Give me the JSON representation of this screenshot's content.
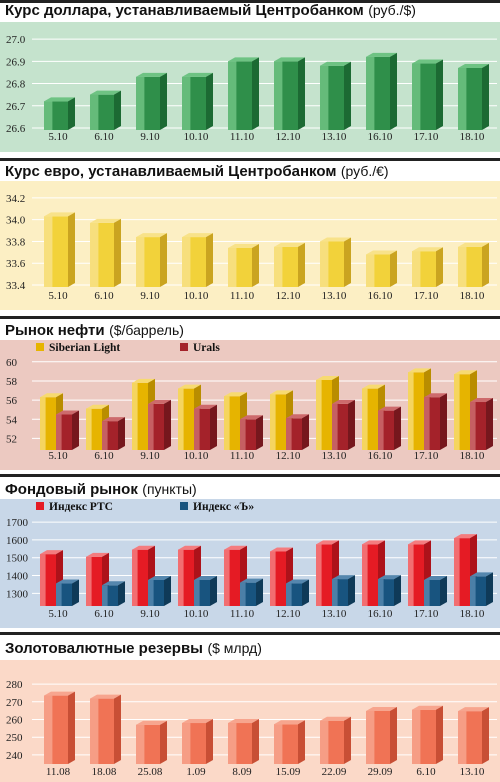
{
  "chart_data": [
    {
      "type": "bar",
      "title": "Курс доллара, устанавливаемый Центробанком",
      "unit": "(руб./$)",
      "categories": [
        "5.10",
        "6.10",
        "9.10",
        "10.10",
        "11.10",
        "12.10",
        "13.10",
        "16.10",
        "17.10",
        "18.10"
      ],
      "y_ticks": [
        "26.6",
        "26.7",
        "26.8",
        "26.9",
        "27.0"
      ],
      "ylim": [
        26.6,
        27.05
      ],
      "colors": {
        "bg": "#c5e3cd",
        "bar": "#2f8f4a",
        "bar_light": "#6ec383",
        "bar_dark": "#1c6a33"
      },
      "series": [
        {
          "values": [
            26.72,
            26.75,
            26.83,
            26.83,
            26.9,
            26.9,
            26.88,
            26.92,
            26.89,
            26.87
          ]
        }
      ]
    },
    {
      "type": "bar",
      "title": "Курс евро, устанавливаемый Центробанком",
      "unit": "(руб./€)",
      "categories": [
        "5.10",
        "6.10",
        "9.10",
        "10.10",
        "11.10",
        "12.10",
        "13.10",
        "16.10",
        "17.10",
        "18.10"
      ],
      "y_ticks": [
        "33.4",
        "33.6",
        "33.8",
        "34.0",
        "34.2"
      ],
      "ylim": [
        33.4,
        34.3
      ],
      "colors": {
        "bg": "#fcefc4",
        "bar": "#f2d23a",
        "bar_light": "#f8e289",
        "bar_dark": "#caa420"
      },
      "series": [
        {
          "values": [
            34.03,
            33.97,
            33.84,
            33.84,
            33.74,
            33.75,
            33.8,
            33.68,
            33.71,
            33.75
          ]
        }
      ]
    },
    {
      "type": "bar",
      "title": "Рынок нефти",
      "unit": "($/баррель)",
      "categories": [
        "5.10",
        "6.10",
        "9.10",
        "10.10",
        "11.10",
        "12.10",
        "13.10",
        "16.10",
        "17.10",
        "18.10"
      ],
      "y_ticks": [
        "52",
        "54",
        "56",
        "58",
        "60"
      ],
      "ylim": [
        51,
        60.5
      ],
      "colors": {
        "bg": "#ecc9c1"
      },
      "series": [
        {
          "name": "Siberian Light",
          "color": "#e6b400",
          "light": "#f7da70",
          "dark": "#b98d00",
          "values": [
            56.3,
            55.1,
            57.8,
            57.2,
            56.4,
            56.6,
            58.1,
            57.2,
            58.9,
            58.7
          ]
        },
        {
          "name": "Urals",
          "color": "#a4222a",
          "light": "#cd6a6c",
          "dark": "#76171d",
          "values": [
            54.5,
            53.8,
            55.6,
            55.1,
            54.0,
            54.1,
            55.6,
            54.9,
            56.3,
            55.8
          ]
        }
      ]
    },
    {
      "type": "bar",
      "title": "Фондовый рынок",
      "unit": "(пункты)",
      "categories": [
        "5.10",
        "6.10",
        "9.10",
        "10.10",
        "11.10",
        "12.10",
        "13.10",
        "16.10",
        "17.10",
        "18.10"
      ],
      "y_ticks": [
        "1300",
        "1400",
        "1500",
        "1600",
        "1700"
      ],
      "ylim": [
        1240,
        1740
      ],
      "colors": {
        "bg": "#c8d7e8"
      },
      "series": [
        {
          "name": "Индекс РТС",
          "color": "#e51b24",
          "light": "#f47c7f",
          "dark": "#ad121a",
          "values": [
            1520,
            1505,
            1545,
            1545,
            1545,
            1535,
            1575,
            1575,
            1575,
            1610
          ]
        },
        {
          "name": "Индекс «Ъ»",
          "color": "#18547f",
          "light": "#5587ae",
          "dark": "#0f3a58",
          "values": [
            1355,
            1345,
            1375,
            1375,
            1360,
            1355,
            1380,
            1380,
            1375,
            1395
          ]
        }
      ]
    },
    {
      "type": "bar",
      "title": "Золотовалютные резервы",
      "unit": "($ млрд)",
      "categories": [
        "11.08",
        "18.08",
        "25.08",
        "1.09",
        "8.09",
        "15.09",
        "22.09",
        "29.09",
        "6.10",
        "13.10"
      ],
      "y_ticks": [
        "240",
        "250",
        "260",
        "270",
        "280"
      ],
      "ylim": [
        236,
        284
      ],
      "colors": {
        "bg": "#fbd9c8",
        "bar": "#f07355",
        "bar_light": "#f7a58e",
        "bar_dark": "#c84f35"
      },
      "series": [
        {
          "values": [
            273.5,
            271.8,
            257.0,
            258.0,
            258.0,
            257.3,
            259.3,
            264.8,
            265.5,
            264.7
          ]
        }
      ]
    }
  ]
}
